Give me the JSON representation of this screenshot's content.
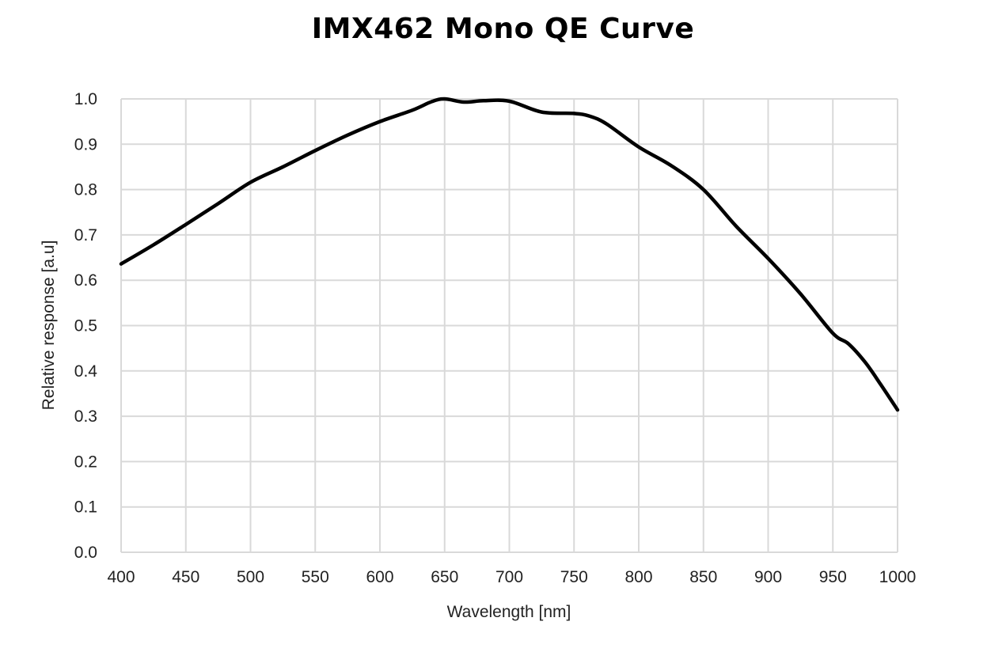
{
  "chart_data": {
    "type": "line",
    "title": "IMX462 Mono QE Curve",
    "xlabel": "Wavelength [nm]",
    "ylabel": "Relative response [a.u]",
    "xlim": [
      400,
      1000
    ],
    "ylim": [
      0.0,
      1.0
    ],
    "xticks": [
      "400",
      "450",
      "500",
      "550",
      "600",
      "650",
      "700",
      "750",
      "800",
      "850",
      "900",
      "950",
      "1000"
    ],
    "yticks": [
      "0.0",
      "0.1",
      "0.2",
      "0.3",
      "0.4",
      "0.5",
      "0.6",
      "0.7",
      "0.8",
      "0.9",
      "1.0"
    ],
    "grid": true,
    "series_color": "#000000",
    "grid_color": "#d9d9d9",
    "series": [
      {
        "name": "IMX462 Mono",
        "x": [
          400,
          425,
          450,
          475,
          500,
          525,
          550,
          575,
          600,
          625,
          640,
          650,
          665,
          680,
          700,
          725,
          750,
          762,
          775,
          800,
          825,
          850,
          875,
          900,
          925,
          950,
          962,
          975,
          987,
          1000
        ],
        "y": [
          0.636,
          0.678,
          0.723,
          0.769,
          0.816,
          0.85,
          0.886,
          0.92,
          0.95,
          0.975,
          0.994,
          1.0,
          0.993,
          0.996,
          0.995,
          0.971,
          0.968,
          0.962,
          0.945,
          0.894,
          0.853,
          0.8,
          0.72,
          0.648,
          0.57,
          0.483,
          0.46,
          0.419,
          0.37,
          0.314
        ]
      }
    ]
  }
}
